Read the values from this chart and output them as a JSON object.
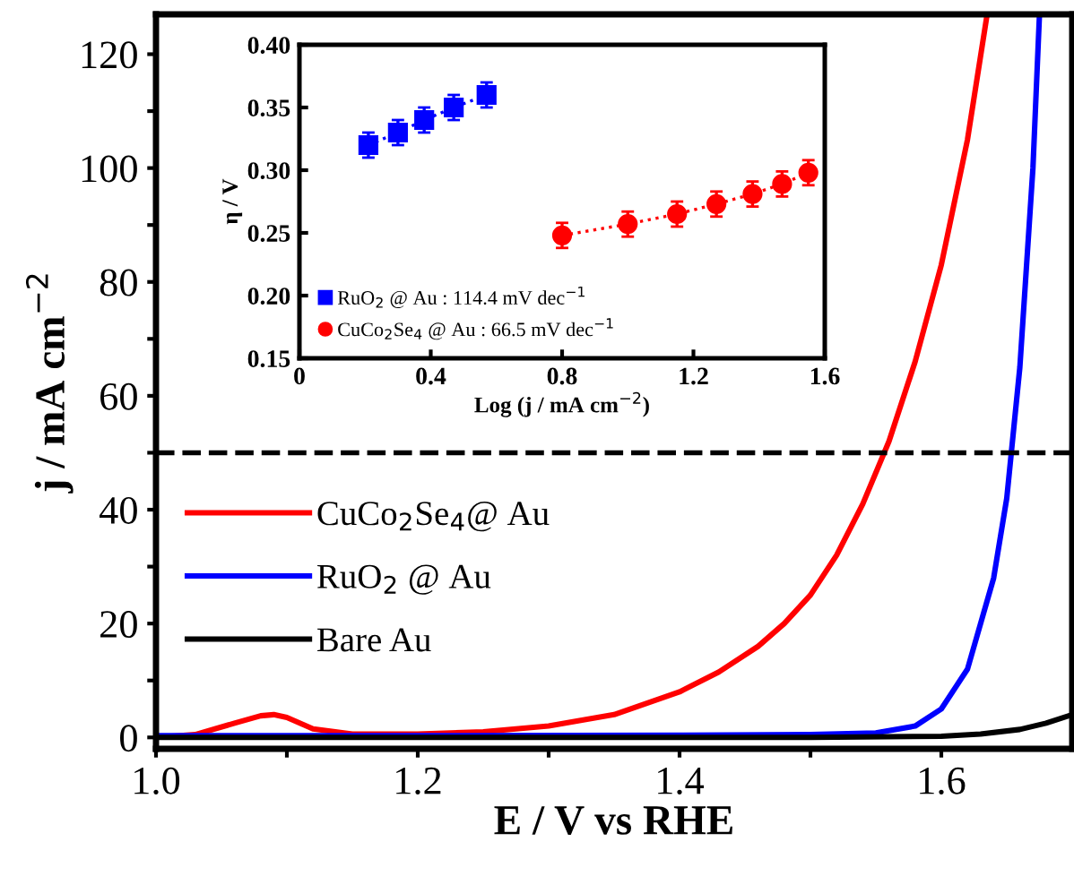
{
  "chart_data": [
    {
      "type": "line",
      "xlabel": "E / V vs RHE",
      "ylabel": "j / mA cm$^{−2}$",
      "xlim": [
        1.0,
        1.7
      ],
      "ylim": [
        -2,
        127
      ],
      "xticks": [
        {
          "value": 1.0,
          "label": "1.0"
        },
        {
          "value": 1.1,
          "label": null
        },
        {
          "value": 1.2,
          "label": "1.2"
        },
        {
          "value": 1.3,
          "label": null
        },
        {
          "value": 1.4,
          "label": "1.4"
        },
        {
          "value": 1.5,
          "label": null
        },
        {
          "value": 1.6,
          "label": "1.6"
        }
      ],
      "yticks": [
        0,
        {
          "value": 10,
          "label": null
        },
        20,
        {
          "value": 30,
          "label": null
        },
        40,
        {
          "value": 50,
          "label": null
        },
        60,
        {
          "value": 70,
          "label": null
        },
        80,
        {
          "value": 90,
          "label": null
        },
        100,
        {
          "value": 110,
          "label": null
        },
        120
      ],
      "legend": "bottom left",
      "grid": false,
      "marker": "none",
      "line_style": "solid",
      "ref_lines": [
        {
          "axis": "y",
          "value": 50,
          "color": "#000000",
          "line_style": "dashed"
        }
      ],
      "series": [
        {
          "name": "CuCo$_{2}$Se$_{4}$@ Au",
          "color": "#ff0000",
          "x": [
            1.0,
            1.03,
            1.06,
            1.08,
            1.09,
            1.1,
            1.12,
            1.15,
            1.2,
            1.25,
            1.3,
            1.35,
            1.4,
            1.43,
            1.46,
            1.48,
            1.5,
            1.52,
            1.54,
            1.56,
            1.58,
            1.6,
            1.62,
            1.635
          ],
          "values": [
            0,
            0.5,
            2.5,
            3.8,
            4,
            3.5,
            1.5,
            0.6,
            0.6,
            1,
            2,
            4,
            8,
            11.5,
            16,
            20,
            25,
            32,
            41,
            52,
            66,
            83,
            105,
            127
          ]
        },
        {
          "name": "RuO$_{2}$ @ Au",
          "color": "#0000ff",
          "x": [
            1.0,
            1.2,
            1.4,
            1.5,
            1.55,
            1.58,
            1.6,
            1.62,
            1.64,
            1.65,
            1.66,
            1.67,
            1.675
          ],
          "values": [
            0.3,
            0.3,
            0.4,
            0.5,
            0.8,
            2,
            5,
            12,
            28,
            42,
            65,
            100,
            127
          ]
        },
        {
          "name": "Bare Au",
          "color": "#000000",
          "x": [
            1.0,
            1.3,
            1.5,
            1.6,
            1.63,
            1.66,
            1.68,
            1.7
          ],
          "values": [
            0,
            0,
            0,
            0.2,
            0.6,
            1.4,
            2.5,
            4
          ]
        }
      ]
    },
    {
      "type": "line",
      "xlabel": "Log (j / mA cm$^{−2}$)",
      "ylabel": "η / V",
      "xlim": [
        0,
        1.6
      ],
      "ylim": [
        0.15,
        0.4
      ],
      "xticks": [
        {
          "value": 0,
          "label": "0"
        },
        {
          "value": 0.4,
          "label": "0.4"
        },
        {
          "value": 0.8,
          "label": "0.8"
        },
        {
          "value": 1.2,
          "label": "1.2"
        },
        {
          "value": 1.6,
          "label": "1.6"
        }
      ],
      "yticks": [
        {
          "value": 0.15,
          "label": "0.15"
        },
        {
          "value": 0.2,
          "label": "0.20"
        },
        {
          "value": 0.25,
          "label": "0.25"
        },
        {
          "value": 0.3,
          "label": "0.30"
        },
        {
          "value": 0.35,
          "label": "0.35"
        },
        {
          "value": 0.4,
          "label": "0.40"
        }
      ],
      "legend": "bottom left",
      "grid": false,
      "line_style": "dotted",
      "series": [
        {
          "name": "RuO$_{2}$ @ Au : 114.4 mV dec$^{−1}$",
          "color": "#0000ff",
          "marker": "square",
          "x": [
            0.21,
            0.3,
            0.38,
            0.47,
            0.57
          ],
          "values": [
            0.32,
            0.33,
            0.34,
            0.35,
            0.36
          ],
          "errors": [
            0.01,
            0.01,
            0.01,
            0.01,
            0.01
          ]
        },
        {
          "name": "CuCo$_{2}$Se$_{4}$ @ Au : 66.5 mV dec$^{−1}$",
          "color": "#ff0000",
          "marker": "circle",
          "x": [
            0.8,
            1.0,
            1.15,
            1.27,
            1.38,
            1.47,
            1.55
          ],
          "values": [
            0.248,
            0.257,
            0.265,
            0.273,
            0.281,
            0.289,
            0.298
          ],
          "errors": [
            0.01,
            0.01,
            0.01,
            0.01,
            0.01,
            0.01,
            0.01
          ]
        }
      ]
    }
  ]
}
